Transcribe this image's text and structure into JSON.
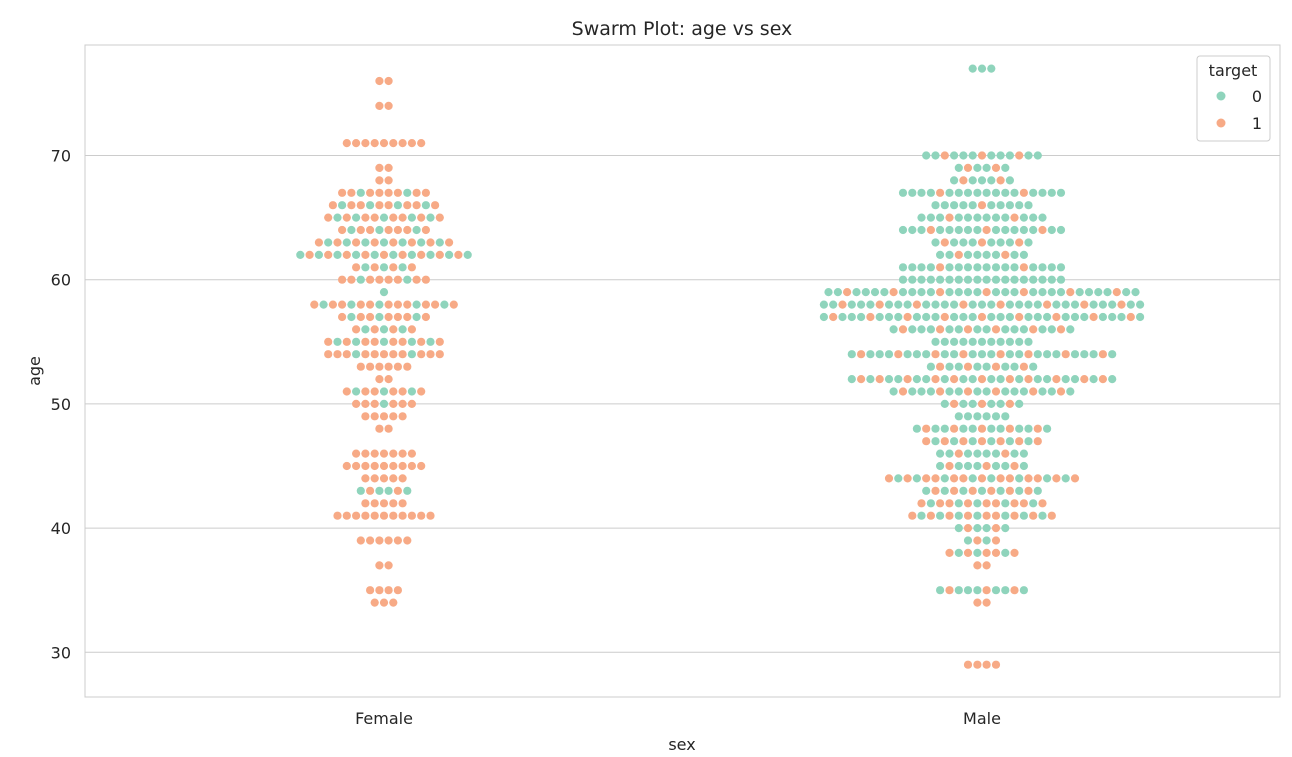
{
  "chart_data": {
    "type": "scatter",
    "subtype": "swarm",
    "title": "Swarm Plot: age vs sex",
    "xlabel": "sex",
    "ylabel": "age",
    "categories": [
      "Female",
      "Male"
    ],
    "ylim": [
      26.4,
      78.9
    ],
    "yticks": [
      30,
      40,
      50,
      60,
      70
    ],
    "grid": "horizontal",
    "legend": {
      "title": "target",
      "placement": "top-right",
      "entries": [
        {
          "label": "0",
          "color": "#8fd4bc"
        },
        {
          "label": "1",
          "color": "#f7aa86"
        }
      ]
    },
    "colors": {
      "0": "#8fd4bc",
      "1": "#f7aa86"
    },
    "series": [
      {
        "category": "Female",
        "points": [
          {
            "age": 76,
            "t0": 0,
            "t1": 2
          },
          {
            "age": 74,
            "t0": 0,
            "t1": 2
          },
          {
            "age": 71,
            "t0": 0,
            "t1": 9
          },
          {
            "age": 69,
            "t0": 0,
            "t1": 2
          },
          {
            "age": 68,
            "t0": 0,
            "t1": 2
          },
          {
            "age": 67,
            "t0": 2,
            "t1": 8
          },
          {
            "age": 66,
            "t0": 4,
            "t1": 8
          },
          {
            "age": 65,
            "t0": 5,
            "t1": 8
          },
          {
            "age": 64,
            "t0": 3,
            "t1": 7
          },
          {
            "age": 63,
            "t0": 7,
            "t1": 8
          },
          {
            "age": 62,
            "t0": 10,
            "t1": 9
          },
          {
            "age": 61,
            "t0": 3,
            "t1": 4
          },
          {
            "age": 60,
            "t0": 2,
            "t1": 8
          },
          {
            "age": 59,
            "t0": 1,
            "t1": 0
          },
          {
            "age": 58,
            "t0": 5,
            "t1": 11
          },
          {
            "age": 57,
            "t0": 3,
            "t1": 7
          },
          {
            "age": 56,
            "t0": 3,
            "t1": 4
          },
          {
            "age": 55,
            "t0": 5,
            "t1": 8
          },
          {
            "age": 54,
            "t0": 2,
            "t1": 11
          },
          {
            "age": 53,
            "t0": 0,
            "t1": 6
          },
          {
            "age": 52,
            "t0": 0,
            "t1": 2
          },
          {
            "age": 51,
            "t0": 3,
            "t1": 6
          },
          {
            "age": 50,
            "t0": 1,
            "t1": 6
          },
          {
            "age": 49,
            "t0": 0,
            "t1": 5
          },
          {
            "age": 48,
            "t0": 0,
            "t1": 2
          },
          {
            "age": 46,
            "t0": 0,
            "t1": 7
          },
          {
            "age": 45,
            "t0": 0,
            "t1": 9
          },
          {
            "age": 44,
            "t0": 0,
            "t1": 5
          },
          {
            "age": 43,
            "t0": 4,
            "t1": 2
          },
          {
            "age": 42,
            "t0": 0,
            "t1": 5
          },
          {
            "age": 41,
            "t0": 0,
            "t1": 11
          },
          {
            "age": 39,
            "t0": 0,
            "t1": 6
          },
          {
            "age": 37,
            "t0": 0,
            "t1": 2
          },
          {
            "age": 35,
            "t0": 0,
            "t1": 4
          },
          {
            "age": 34,
            "t0": 0,
            "t1": 3
          }
        ]
      },
      {
        "category": "Male",
        "points": [
          {
            "age": 77,
            "t0": 3,
            "t1": 0
          },
          {
            "age": 70,
            "t0": 10,
            "t1": 3
          },
          {
            "age": 69,
            "t0": 4,
            "t1": 2
          },
          {
            "age": 68,
            "t0": 5,
            "t1": 2
          },
          {
            "age": 67,
            "t0": 16,
            "t1": 2
          },
          {
            "age": 66,
            "t0": 10,
            "t1": 1
          },
          {
            "age": 65,
            "t0": 12,
            "t1": 2
          },
          {
            "age": 64,
            "t0": 15,
            "t1": 3
          },
          {
            "age": 63,
            "t0": 8,
            "t1": 3
          },
          {
            "age": 62,
            "t0": 8,
            "t1": 2
          },
          {
            "age": 61,
            "t0": 16,
            "t1": 2
          },
          {
            "age": 60,
            "t0": 18,
            "t1": 0
          },
          {
            "age": 59,
            "t0": 27,
            "t1": 7
          },
          {
            "age": 58,
            "t0": 27,
            "t1": 8
          },
          {
            "age": 57,
            "t0": 26,
            "t1": 9
          },
          {
            "age": 56,
            "t0": 14,
            "t1": 6
          },
          {
            "age": 55,
            "t0": 11,
            "t1": 0
          },
          {
            "age": 54,
            "t0": 21,
            "t1": 8
          },
          {
            "age": 53,
            "t0": 8,
            "t1": 4
          },
          {
            "age": 52,
            "t0": 18,
            "t1": 11
          },
          {
            "age": 51,
            "t0": 14,
            "t1": 6
          },
          {
            "age": 50,
            "t0": 6,
            "t1": 3
          },
          {
            "age": 49,
            "t0": 6,
            "t1": 0
          },
          {
            "age": 48,
            "t0": 10,
            "t1": 5
          },
          {
            "age": 47,
            "t0": 6,
            "t1": 7
          },
          {
            "age": 46,
            "t0": 8,
            "t1": 2
          },
          {
            "age": 45,
            "t0": 7,
            "t1": 3
          },
          {
            "age": 44,
            "t0": 8,
            "t1": 13
          },
          {
            "age": 43,
            "t0": 7,
            "t1": 6
          },
          {
            "age": 42,
            "t0": 5,
            "t1": 9
          },
          {
            "age": 41,
            "t0": 7,
            "t1": 9
          },
          {
            "age": 40,
            "t0": 4,
            "t1": 2
          },
          {
            "age": 39,
            "t0": 2,
            "t1": 2
          },
          {
            "age": 38,
            "t0": 3,
            "t1": 5
          },
          {
            "age": 37,
            "t0": 0,
            "t1": 2
          },
          {
            "age": 35,
            "t0": 7,
            "t1": 3
          },
          {
            "age": 34,
            "t0": 0,
            "t1": 2
          },
          {
            "age": 29,
            "t0": 0,
            "t1": 4
          }
        ]
      }
    ]
  }
}
